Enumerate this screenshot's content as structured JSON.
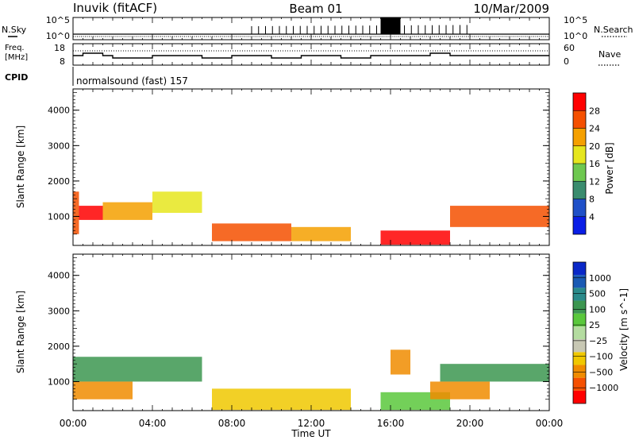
{
  "header": {
    "station": "Inuvik (fitACF)",
    "beam": "Beam 01",
    "date": "10/Mar/2009"
  },
  "nsky_panel": {
    "left_label": "N.Sky",
    "right_label": "N.Search",
    "left_ticks": [
      "10^5",
      "10^0"
    ],
    "right_ticks": [
      "10^5",
      "10^0"
    ]
  },
  "freq_panel": {
    "left_label_1": "Freq.",
    "left_label_2": "[MHz]",
    "right_label": "Nave",
    "left_ticks": [
      "18",
      "8"
    ],
    "right_ticks": [
      "60",
      "0"
    ]
  },
  "cpid": {
    "label": "CPID",
    "value": "normalsound (fast) 157"
  },
  "x_axis": {
    "label": "Time UT",
    "ticks": [
      "00:00",
      "04:00",
      "08:00",
      "12:00",
      "16:00",
      "20:00",
      "00:00"
    ]
  },
  "colors": {
    "power_scale": [
      "#0a1ee6",
      "#1f50c8",
      "#3a8c6e",
      "#6ec850",
      "#e6e61e",
      "#f5a000",
      "#f55000",
      "#ff0000"
    ],
    "velocity_scale": [
      "#ff0000",
      "#f55000",
      "#f08c00",
      "#f0c800",
      "#c8c8b4",
      "#b4dca0",
      "#5ac83c",
      "#3c9650",
      "#2a8a8a",
      "#1a5ab4",
      "#0a28c8"
    ]
  },
  "chart_data": [
    {
      "type": "heatmap",
      "title": "Power",
      "ylabel": "Slant Range [km]",
      "xlabel": "",
      "ylim": [
        180,
        4600
      ],
      "y_ticks": [
        "1000",
        "2000",
        "3000",
        "4000"
      ],
      "colorbar": {
        "label": "Power [dB]",
        "ticks": [
          "4",
          "8",
          "12",
          "16",
          "20",
          "24",
          "28"
        ],
        "range": [
          0,
          30
        ]
      },
      "echo_regions": [
        {
          "t0": 0.0,
          "t1": 0.3,
          "r0": 500,
          "r1": 1700,
          "level": 24
        },
        {
          "t0": 0.3,
          "t1": 1.5,
          "r0": 900,
          "r1": 1300,
          "level": 28
        },
        {
          "t0": 1.5,
          "t1": 4.0,
          "r0": 900,
          "r1": 1400,
          "level": 20
        },
        {
          "t0": 4.0,
          "t1": 6.5,
          "r0": 1100,
          "r1": 1700,
          "level": 16
        },
        {
          "t0": 7.0,
          "t1": 11.0,
          "r0": 300,
          "r1": 800,
          "level": 24
        },
        {
          "t0": 11.0,
          "t1": 14.0,
          "r0": 300,
          "r1": 700,
          "level": 20
        },
        {
          "t0": 15.5,
          "t1": 19.0,
          "r0": 200,
          "r1": 600,
          "level": 28
        },
        {
          "t0": 19.0,
          "t1": 24.0,
          "r0": 700,
          "r1": 1300,
          "level": 24
        }
      ]
    },
    {
      "type": "heatmap",
      "title": "Velocity",
      "ylabel": "Slant Range [km]",
      "xlabel": "Time UT",
      "ylim": [
        180,
        4600
      ],
      "y_ticks": [
        "1000",
        "2000",
        "3000",
        "4000"
      ],
      "colorbar": {
        "label": "Velocity [m s^-1]",
        "ticks": [
          "1000",
          "500",
          "100",
          "25",
          "−25",
          "−100",
          "−500",
          "−1000"
        ]
      },
      "echo_regions": [
        {
          "t0": 0.0,
          "t1": 6.5,
          "r0": 1000,
          "r1": 1700,
          "velocity": 200
        },
        {
          "t0": 0.0,
          "t1": 3.0,
          "r0": 500,
          "r1": 1000,
          "velocity": -150
        },
        {
          "t0": 7.0,
          "t1": 14.0,
          "r0": 200,
          "r1": 800,
          "velocity": -25
        },
        {
          "t0": 15.5,
          "t1": 19.0,
          "r0": 200,
          "r1": 700,
          "velocity": 60
        },
        {
          "t0": 16.0,
          "t1": 17.0,
          "r0": 1200,
          "r1": 1900,
          "velocity": -200
        },
        {
          "t0": 18.5,
          "t1": 24.0,
          "r0": 1000,
          "r1": 1500,
          "velocity": 200
        },
        {
          "t0": 18.0,
          "t1": 21.0,
          "r0": 500,
          "r1": 1000,
          "velocity": -150
        }
      ]
    }
  ]
}
